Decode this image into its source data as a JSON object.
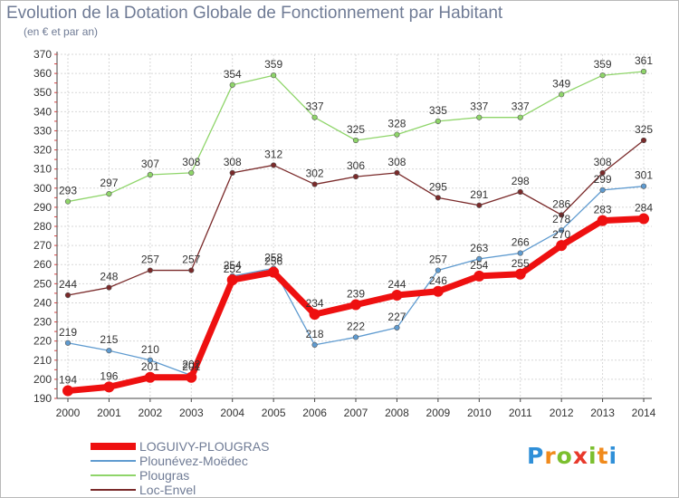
{
  "title": "Evolution de la Dotation Globale de Fonctionnement par Habitant",
  "subtitle": "(en € et par an)",
  "logo": {
    "letters": [
      "P",
      "r",
      "o",
      "x",
      "i",
      "t",
      "i"
    ],
    "colors": [
      "#2f8fd8",
      "#f08a1c",
      "#7bbf2e",
      "#e8392b",
      "#7bbf2e",
      "#f08a1c",
      "#2f8fd8"
    ]
  },
  "chart_data": {
    "type": "line",
    "x": [
      "2000",
      "2001",
      "2002",
      "2003",
      "2004",
      "2005",
      "2006",
      "2007",
      "2008",
      "2009",
      "2010",
      "2011",
      "2012",
      "2013",
      "2014"
    ],
    "ylim": [
      190,
      370
    ],
    "yticks": [
      190,
      200,
      210,
      220,
      230,
      240,
      250,
      260,
      270,
      280,
      290,
      300,
      310,
      320,
      330,
      340,
      350,
      360,
      370
    ],
    "grid": true,
    "legend_position": "bottom-left",
    "series": [
      {
        "name": "LOGUIVY-PLOUGRAS",
        "color": "#ee1010",
        "width": 7,
        "marker": 6,
        "values": [
          194,
          196,
          201,
          201,
          252,
          256,
          234,
          239,
          244,
          246,
          254,
          255,
          270,
          283,
          284
        ],
        "labels": [
          "194",
          "196",
          "201",
          "201",
          "252",
          "256",
          "234",
          "239",
          "244",
          "246",
          "254",
          "255",
          "270",
          "283",
          "284"
        ]
      },
      {
        "name": "Plounévez-Moëdec",
        "color": "#5f9bd0",
        "width": 1.3,
        "marker": 2.8,
        "values": [
          219,
          215,
          210,
          202,
          254,
          258,
          218,
          222,
          227,
          257,
          263,
          266,
          278,
          299,
          301
        ],
        "labels": [
          "219",
          "215",
          "210",
          "202",
          "254",
          "258",
          "218",
          "222",
          "227",
          "257",
          "263",
          "266",
          "278",
          "299",
          "301"
        ]
      },
      {
        "name": "Plougras",
        "color": "#8fd56a",
        "width": 1.3,
        "marker": 2.8,
        "values": [
          293,
          297,
          307,
          308,
          354,
          359,
          337,
          325,
          328,
          335,
          337,
          337,
          349,
          359,
          361
        ],
        "labels": [
          "293",
          "297",
          "307",
          "308",
          "354",
          "359",
          "337",
          "325",
          "328",
          "335",
          "337",
          "337",
          "349",
          "359",
          "361"
        ]
      },
      {
        "name": "Loc-Envel",
        "color": "#7a2a2a",
        "width": 1.3,
        "marker": 2.8,
        "values": [
          244,
          248,
          257,
          257,
          308,
          312,
          302,
          306,
          308,
          295,
          291,
          298,
          286,
          308,
          325
        ],
        "labels": [
          "244",
          "248",
          "257",
          "257",
          "308",
          "312",
          "302",
          "306",
          "308",
          "295",
          "291",
          "298",
          "286",
          "308",
          "325"
        ]
      }
    ]
  }
}
